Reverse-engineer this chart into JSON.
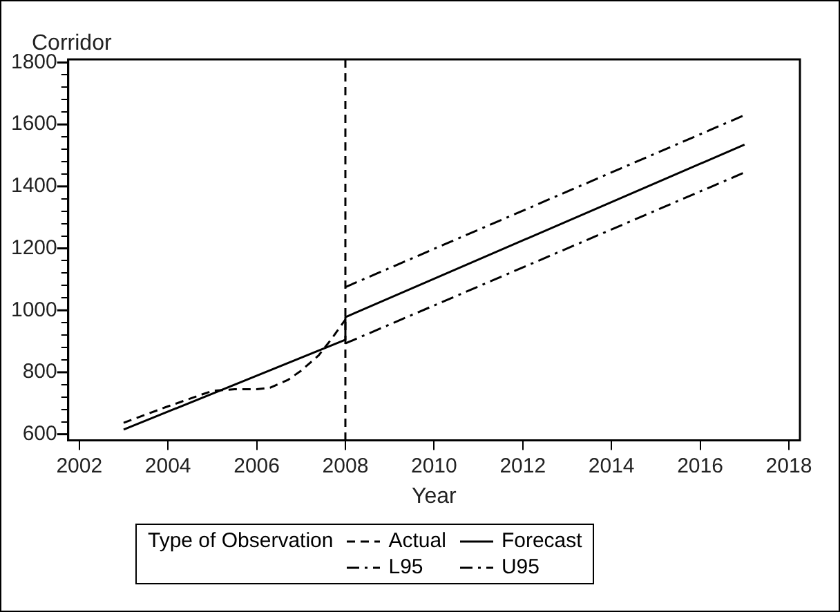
{
  "chart_data": {
    "type": "line",
    "xlabel": "Year",
    "ylabel": "Corridor",
    "legend_title": "Type of Observation",
    "legend": "bottom",
    "grid": false,
    "marker": "none",
    "xlim": [
      2001.75,
      2018.25
    ],
    "xticks": [
      2002,
      2004,
      2006,
      2008,
      2010,
      2012,
      2014,
      2016,
      2018
    ],
    "ylim": [
      580,
      1810
    ],
    "yticks": [
      600,
      {
        "value": 640,
        "label": null
      },
      {
        "value": 680,
        "label": null
      },
      {
        "value": 720,
        "label": null
      },
      {
        "value": 760,
        "label": null
      },
      800,
      {
        "value": 840,
        "label": null
      },
      {
        "value": 880,
        "label": null
      },
      {
        "value": 920,
        "label": null
      },
      {
        "value": 960,
        "label": null
      },
      1000,
      {
        "value": 1040,
        "label": null
      },
      {
        "value": 1080,
        "label": null
      },
      {
        "value": 1120,
        "label": null
      },
      {
        "value": 1160,
        "label": null
      },
      1200,
      {
        "value": 1240,
        "label": null
      },
      {
        "value": 1280,
        "label": null
      },
      {
        "value": 1320,
        "label": null
      },
      {
        "value": 1360,
        "label": null
      },
      1400,
      {
        "value": 1440,
        "label": null
      },
      {
        "value": 1480,
        "label": null
      },
      {
        "value": 1520,
        "label": null
      },
      {
        "value": 1560,
        "label": null
      },
      1600,
      {
        "value": 1640,
        "label": null
      },
      {
        "value": 1680,
        "label": null
      },
      {
        "value": 1720,
        "label": null
      },
      {
        "value": 1760,
        "label": null
      },
      1800
    ],
    "ref_lines": [
      {
        "axis": "x",
        "value": 2008,
        "label": null,
        "color": "#000000",
        "line_style": "dashed"
      }
    ],
    "series": [
      {
        "name": "Actual",
        "color": "#000000",
        "line_style": "dashed",
        "x": [
          2003,
          2004,
          2005,
          2005.5,
          2006,
          2006.3,
          2006.7,
          2007,
          2007.4,
          2007.7,
          2008
        ],
        "values": [
          637,
          690,
          740,
          745,
          745,
          750,
          775,
          805,
          855,
          910,
          970
        ]
      },
      {
        "name": "Forecast",
        "color": "#000000",
        "line_style": "solid",
        "x": [
          2003,
          2008,
          2008,
          2017
        ],
        "values": [
          615,
          905,
          978,
          1535
        ]
      },
      {
        "name": "L95",
        "color": "#000000",
        "line_style": "dashdot",
        "x": [
          2008,
          2017
        ],
        "values": [
          893,
          1445
        ]
      },
      {
        "name": "U95",
        "color": "#000000",
        "line_style": "dashdot",
        "x": [
          2008,
          2017
        ],
        "values": [
          1075,
          1630
        ]
      }
    ]
  }
}
